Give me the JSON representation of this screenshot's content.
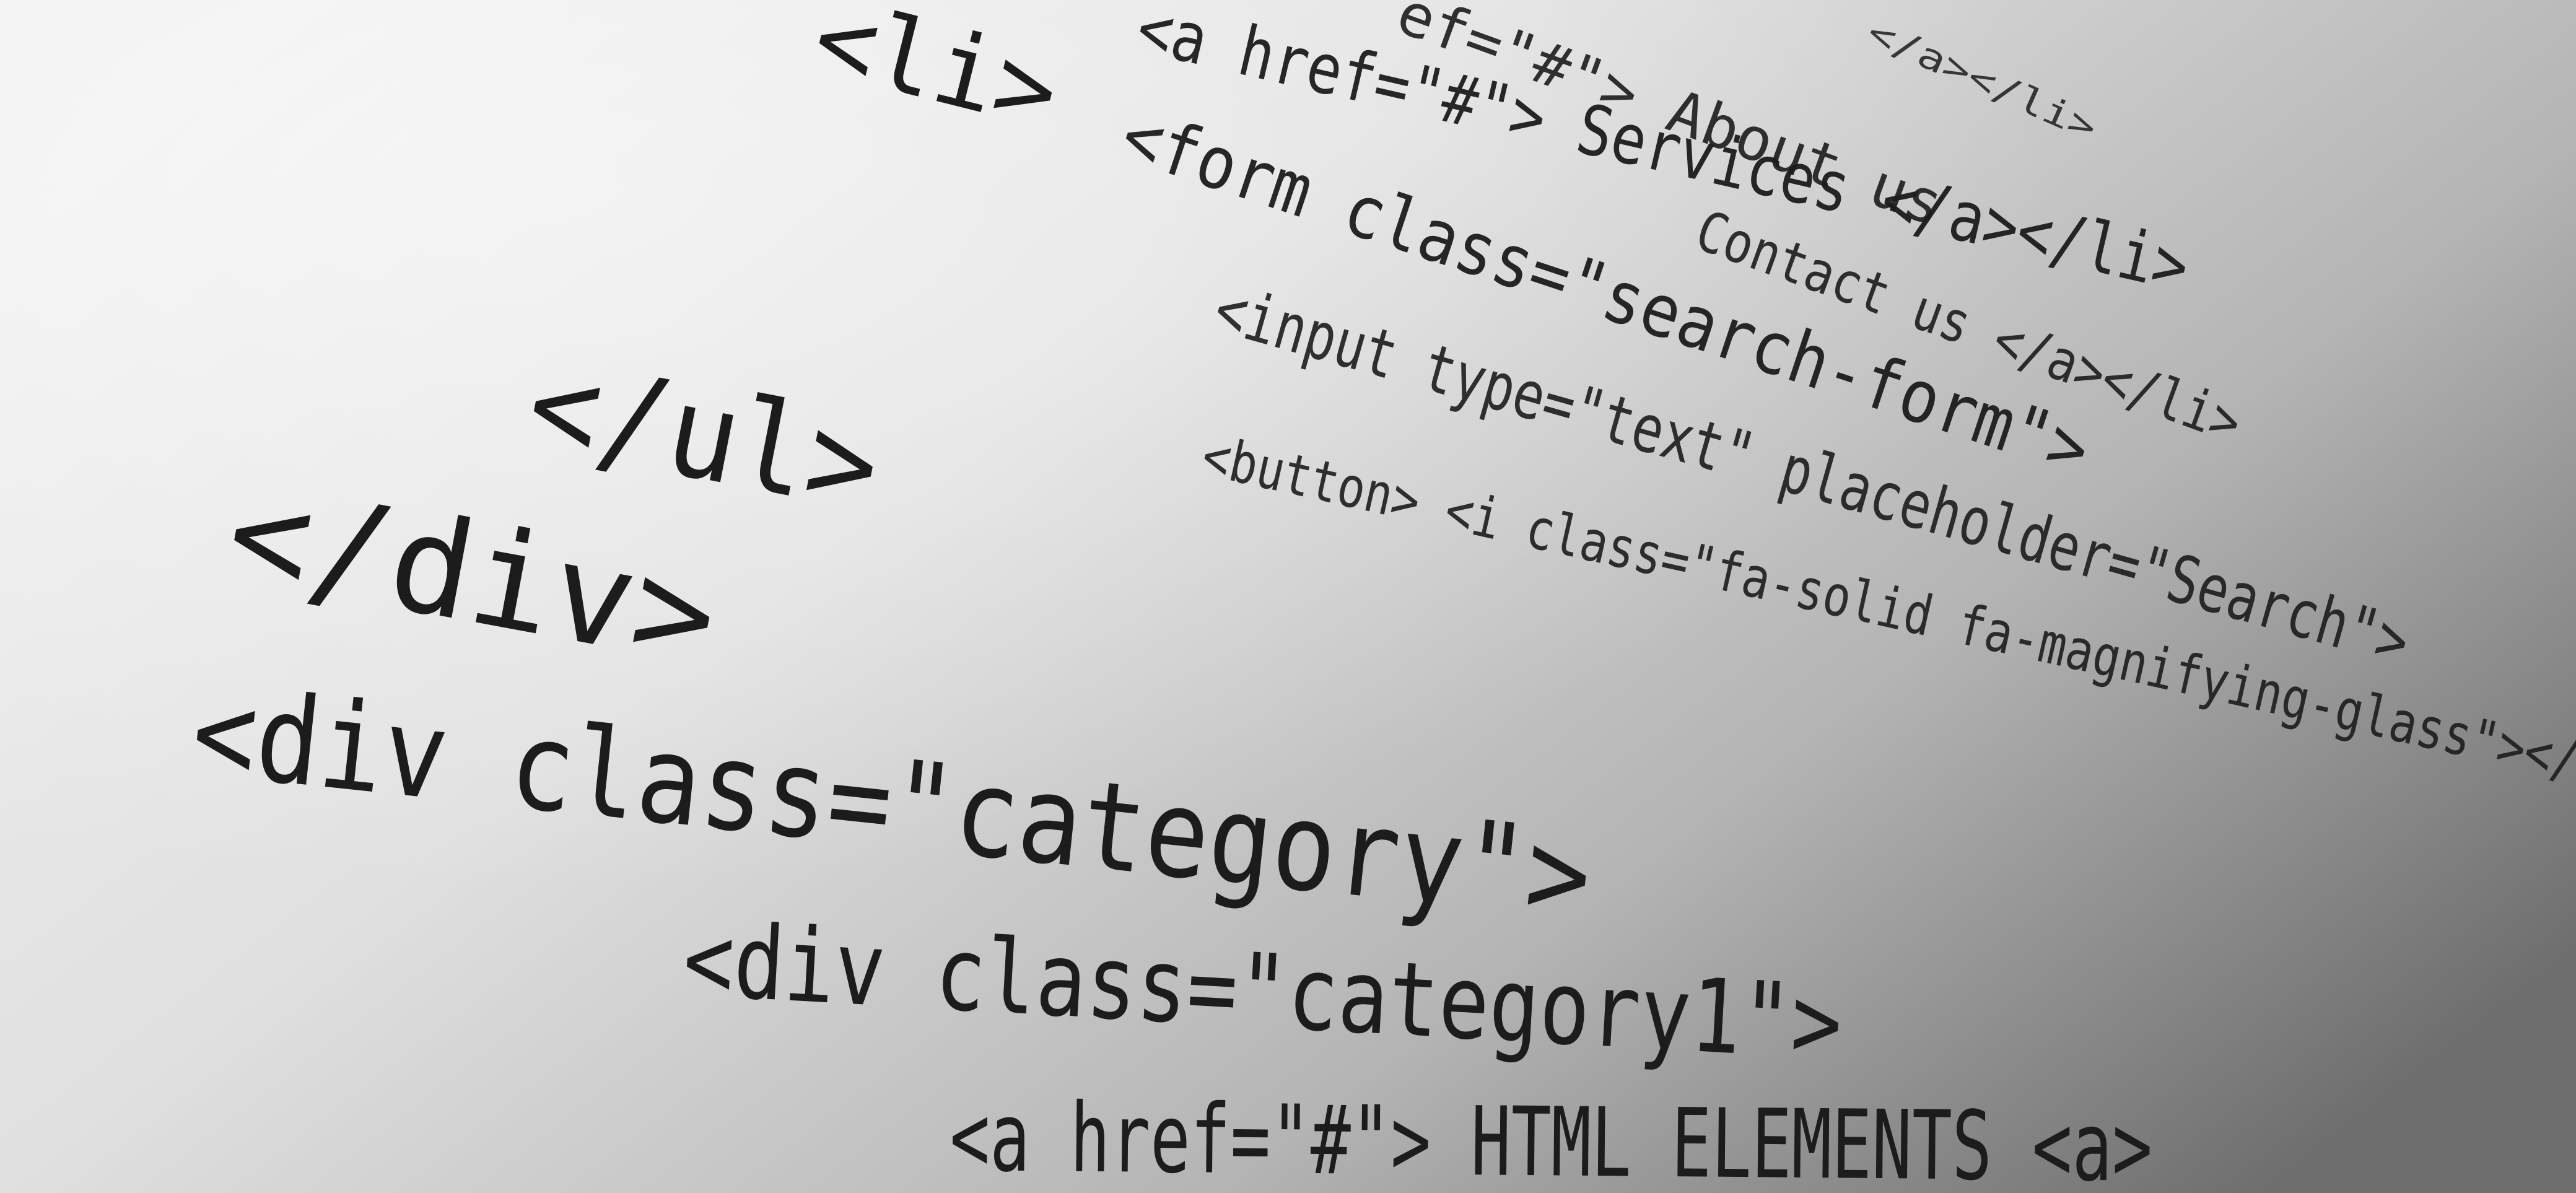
{
  "code_lines": [
    "</a></li>",
    "ef=\"#\"> About us",
    "<li>",
    "<a href=\"#\"> Services </a></li>",
    "<form class=\"search-form\">",
    "Contact us </a></li>",
    "<input type=\"text\" placeholder=\"Search\">",
    "</ul>",
    "<button> <i class=\"fa-solid fa-magnifying-glass\"></",
    "</div>",
    "<div class=\"category\">",
    "<div class=\"category1\">",
    "<a href=\"#\"> HTML ELEMENTS <a>"
  ]
}
